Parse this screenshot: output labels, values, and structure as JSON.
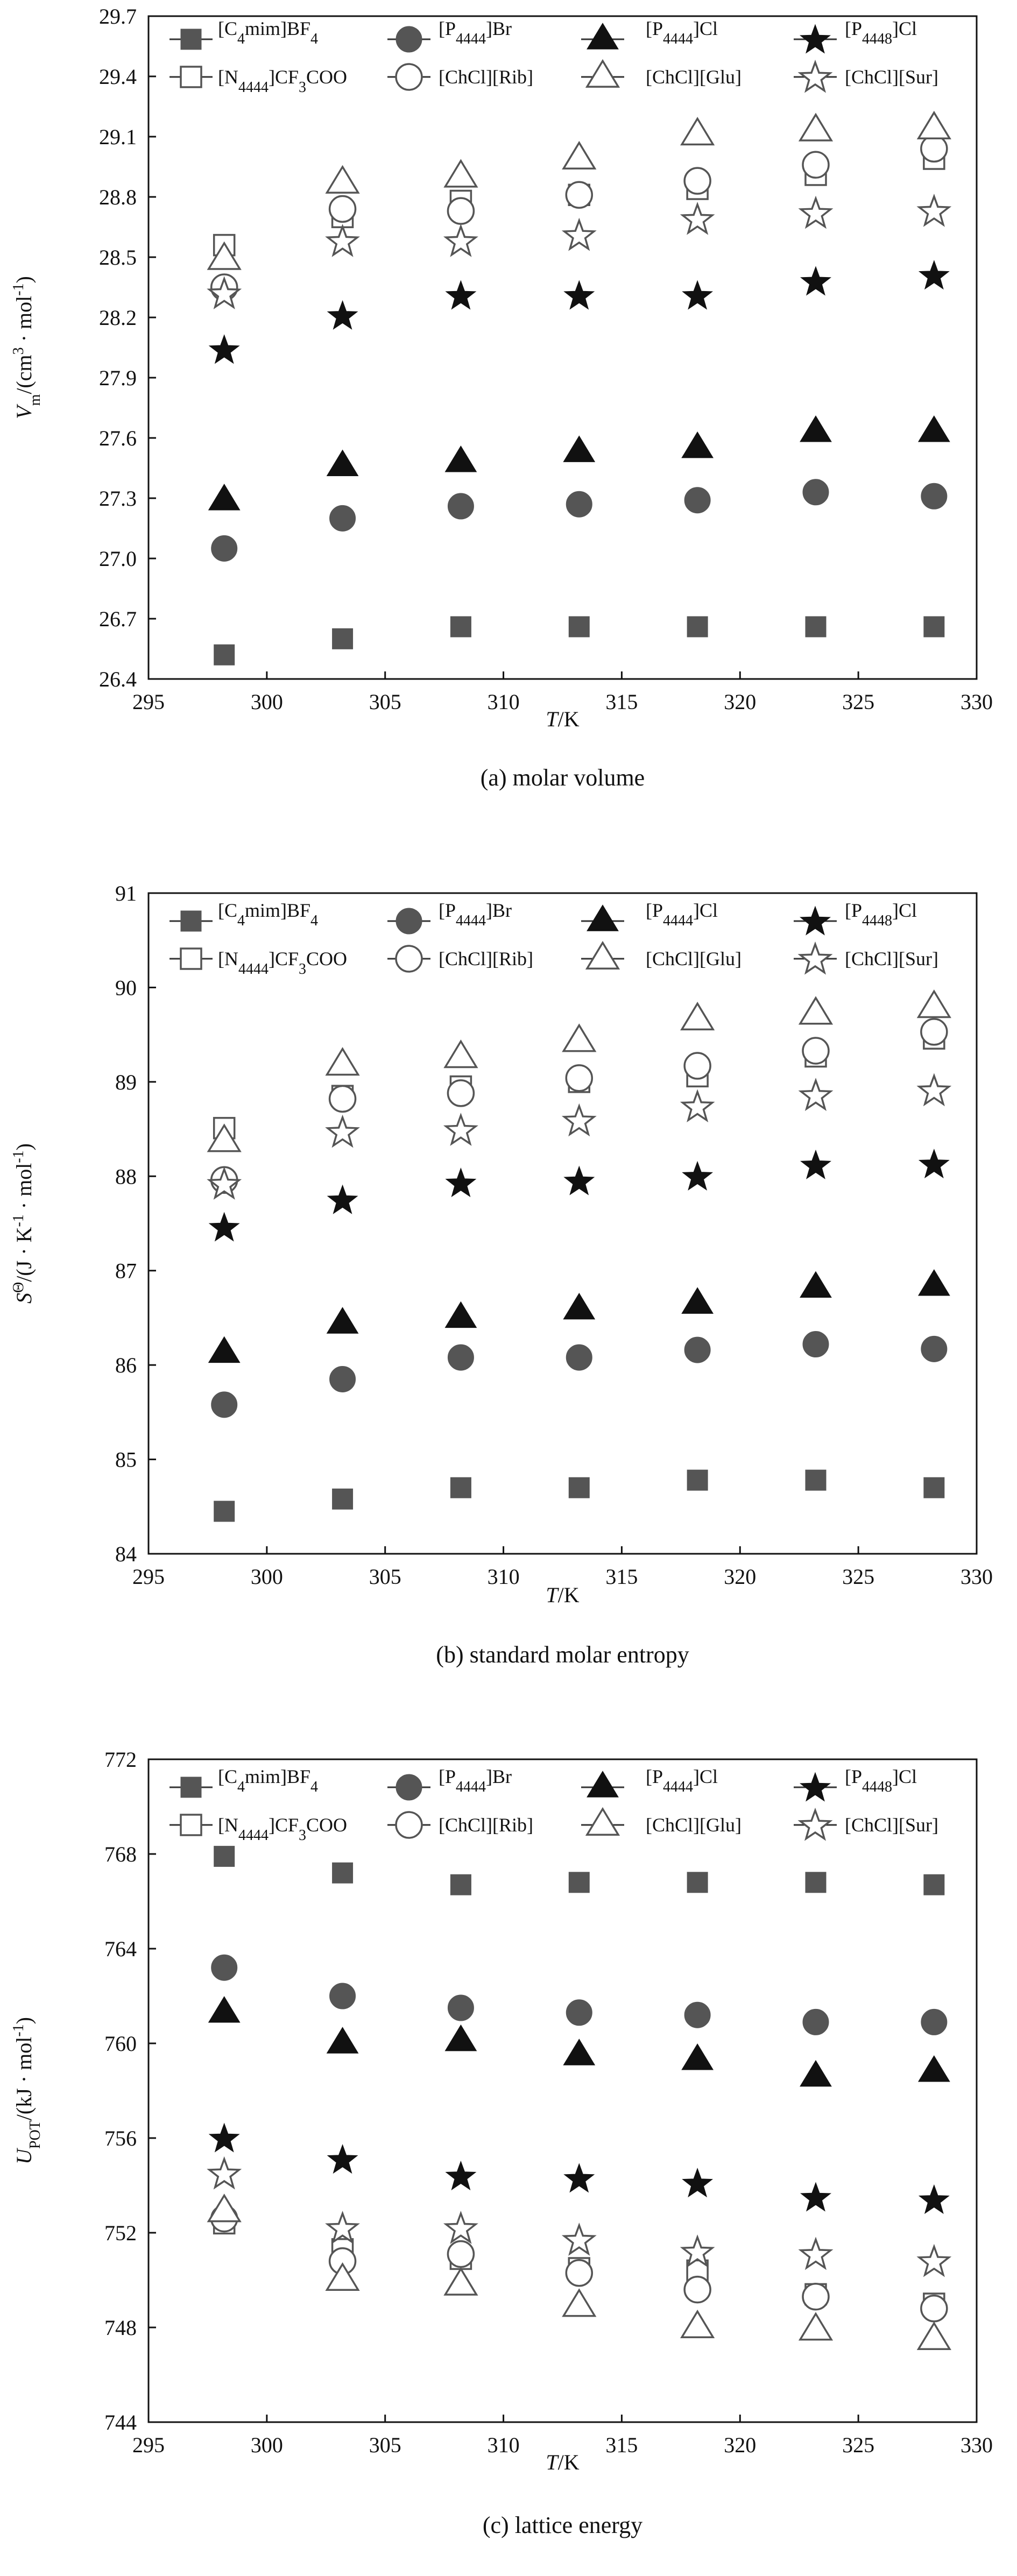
{
  "figure": {
    "charts": [
      {
        "id": "a",
        "caption": "(a) molar volume",
        "ylabel_parts": [
          {
            "t": "V",
            "italic": true
          },
          {
            "t": "m",
            "sub": true
          },
          {
            "t": "/(cm"
          },
          {
            "t": "3",
            "sup": true
          },
          {
            "t": " · mol"
          },
          {
            "t": "-1",
            "sup": true
          },
          {
            "t": ")"
          }
        ]
      },
      {
        "id": "b",
        "caption": "(b) standard molar entropy",
        "ylabel_parts": [
          {
            "t": "S",
            "italic": true
          },
          {
            "t": "Θ",
            "sup": true
          },
          {
            "t": "/(J · K"
          },
          {
            "t": "-1",
            "sup": true
          },
          {
            "t": " · mol"
          },
          {
            "t": "-1",
            "sup": true
          },
          {
            "t": ")"
          }
        ]
      },
      {
        "id": "c",
        "caption": "(c) lattice energy",
        "ylabel_parts": [
          {
            "t": "U",
            "italic": true
          },
          {
            "t": "POT",
            "sub": true
          },
          {
            "t": "/(kJ · mol"
          },
          {
            "t": "-1",
            "sup": true
          },
          {
            "t": ")"
          }
        ]
      }
    ],
    "legend": [
      {
        "parts": [
          {
            "t": "[C"
          },
          {
            "t": "4",
            "sub": true
          },
          {
            "t": "mim]BF"
          },
          {
            "t": "4",
            "sub": true
          }
        ],
        "marker": "square",
        "filled": true
      },
      {
        "parts": [
          {
            "t": "[P"
          },
          {
            "t": "4444",
            "sub": true
          },
          {
            "t": "]Br"
          }
        ],
        "marker": "circle",
        "filled": true
      },
      {
        "parts": [
          {
            "t": "[P"
          },
          {
            "t": "4444",
            "sub": true
          },
          {
            "t": "]Cl"
          }
        ],
        "marker": "triangle",
        "filled": true
      },
      {
        "parts": [
          {
            "t": "[P"
          },
          {
            "t": "4448",
            "sub": true
          },
          {
            "t": "]Cl"
          }
        ],
        "marker": "star",
        "filled": true
      },
      {
        "parts": [
          {
            "t": "[N"
          },
          {
            "t": "4444",
            "sub": true
          },
          {
            "t": "]CF"
          },
          {
            "t": "3",
            "sub": true
          },
          {
            "t": "COO"
          }
        ],
        "marker": "square",
        "filled": false
      },
      {
        "parts": [
          {
            "t": "[ChCl][Rib]"
          }
        ],
        "marker": "circle",
        "filled": false
      },
      {
        "parts": [
          {
            "t": "[ChCl][Glu]"
          }
        ],
        "marker": "triangle",
        "filled": false
      },
      {
        "parts": [
          {
            "t": "[ChCl][Sur]"
          }
        ],
        "marker": "star",
        "filled": false
      }
    ]
  },
  "chart_data": [
    {
      "type": "scatter",
      "title": "(a) molar volume",
      "xlabel": "T/K",
      "ylabel": "Vm/(cm3 · mol-1)",
      "xlim": [
        295,
        330
      ],
      "ylim": [
        26.4,
        29.7
      ],
      "xticks": [
        295,
        300,
        305,
        310,
        315,
        320,
        325,
        330
      ],
      "yticks": [
        26.4,
        26.7,
        27.0,
        27.3,
        27.6,
        27.9,
        28.2,
        28.5,
        28.8,
        29.1,
        29.4,
        29.7
      ],
      "x": [
        298.2,
        303.2,
        308.2,
        313.2,
        318.2,
        323.2,
        328.2
      ],
      "legend": "top",
      "series": [
        {
          "name": "[C4mim]BF4",
          "values": [
            26.52,
            26.6,
            26.66,
            26.66,
            26.66,
            26.66,
            26.66
          ]
        },
        {
          "name": "[P4444]Br",
          "values": [
            27.05,
            27.2,
            27.26,
            27.27,
            27.29,
            27.33,
            27.31
          ]
        },
        {
          "name": "[P4444]Cl",
          "values": [
            27.29,
            27.46,
            27.48,
            27.53,
            27.55,
            27.63,
            27.63
          ]
        },
        {
          "name": "[P4448]Cl",
          "values": [
            28.04,
            28.21,
            28.31,
            28.31,
            28.31,
            28.38,
            28.41
          ]
        },
        {
          "name": "[N4444]CF3COO",
          "values": [
            28.56,
            28.7,
            28.78,
            28.81,
            28.84,
            28.91,
            28.99
          ]
        },
        {
          "name": "[ChCl][Rib]",
          "values": [
            28.35,
            28.74,
            28.73,
            28.81,
            28.88,
            28.96,
            29.04
          ]
        },
        {
          "name": "[ChCl][Glu]",
          "values": [
            28.49,
            28.87,
            28.9,
            28.99,
            29.11,
            29.13,
            29.14
          ]
        },
        {
          "name": "[ChCl][Sur]",
          "values": [
            28.32,
            28.58,
            28.58,
            28.61,
            28.69,
            28.72,
            28.73
          ]
        }
      ]
    },
    {
      "type": "scatter",
      "title": "(b) standard molar entropy",
      "xlabel": "T/K",
      "ylabel": "SΘ/(J · K-1 · mol-1)",
      "xlim": [
        295,
        330
      ],
      "ylim": [
        84,
        91
      ],
      "xticks": [
        295,
        300,
        305,
        310,
        315,
        320,
        325,
        330
      ],
      "yticks": [
        84,
        85,
        86,
        87,
        88,
        89,
        90,
        91
      ],
      "x": [
        298.2,
        303.2,
        308.2,
        313.2,
        318.2,
        323.2,
        328.2
      ],
      "legend": "top",
      "series": [
        {
          "name": "[C4mim]BF4",
          "values": [
            84.45,
            84.58,
            84.7,
            84.7,
            84.78,
            84.78,
            84.7
          ]
        },
        {
          "name": "[P4444]Br",
          "values": [
            85.58,
            85.85,
            86.08,
            86.08,
            86.16,
            86.22,
            86.17
          ]
        },
        {
          "name": "[P4444]Cl",
          "values": [
            86.13,
            86.44,
            86.5,
            86.59,
            86.65,
            86.82,
            86.84
          ]
        },
        {
          "name": "[P4448]Cl",
          "values": [
            87.46,
            87.75,
            87.93,
            87.95,
            88.0,
            88.12,
            88.13
          ]
        },
        {
          "name": "[N4444]CF3COO",
          "values": [
            88.51,
            88.85,
            88.95,
            89.0,
            89.06,
            89.27,
            89.46
          ]
        },
        {
          "name": "[ChCl][Rib]",
          "values": [
            87.96,
            88.82,
            88.88,
            89.04,
            89.17,
            89.33,
            89.53
          ]
        },
        {
          "name": "[ChCl][Glu]",
          "values": [
            88.37,
            89.18,
            89.26,
            89.43,
            89.66,
            89.72,
            89.79
          ]
        },
        {
          "name": "[ChCl][Sur]",
          "values": [
            87.92,
            88.47,
            88.49,
            88.59,
            88.74,
            88.86,
            88.91
          ]
        }
      ]
    },
    {
      "type": "scatter",
      "title": "(c) lattice energy",
      "xlabel": "T/K",
      "ylabel": "UPOT/(kJ · mol-1)",
      "xlim": [
        295,
        330
      ],
      "ylim": [
        744,
        772
      ],
      "xticks": [
        295,
        300,
        305,
        310,
        315,
        320,
        325,
        330
      ],
      "yticks": [
        744,
        748,
        752,
        756,
        760,
        764,
        768,
        772
      ],
      "x": [
        298.2,
        303.2,
        308.2,
        313.2,
        318.2,
        323.2,
        328.2
      ],
      "legend": "top",
      "series": [
        {
          "name": "[C4mim]BF4",
          "values": [
            767.9,
            767.2,
            766.7,
            766.8,
            766.8,
            766.8,
            766.7
          ]
        },
        {
          "name": "[P4444]Br",
          "values": [
            763.2,
            762.0,
            761.5,
            761.3,
            761.2,
            760.9,
            760.9
          ]
        },
        {
          "name": "[P4444]Cl",
          "values": [
            761.3,
            760.0,
            760.1,
            759.5,
            759.3,
            758.6,
            758.8
          ]
        },
        {
          "name": "[P4448]Cl",
          "values": [
            756.0,
            755.1,
            754.4,
            754.3,
            754.1,
            753.5,
            753.4
          ]
        },
        {
          "name": "[N4444]CF3COO",
          "values": [
            752.4,
            751.3,
            750.9,
            750.5,
            750.4,
            749.4,
            749.0
          ]
        },
        {
          "name": "[ChCl][Rib]",
          "values": [
            752.6,
            750.8,
            751.1,
            750.3,
            749.6,
            749.3,
            748.8
          ]
        },
        {
          "name": "[ChCl][Glu]",
          "values": [
            752.9,
            750.0,
            749.8,
            748.9,
            748.0,
            747.9,
            747.5
          ]
        },
        {
          "name": "[ChCl][Sur]",
          "values": [
            754.5,
            752.2,
            752.2,
            751.7,
            751.2,
            751.1,
            750.8
          ]
        }
      ]
    }
  ]
}
